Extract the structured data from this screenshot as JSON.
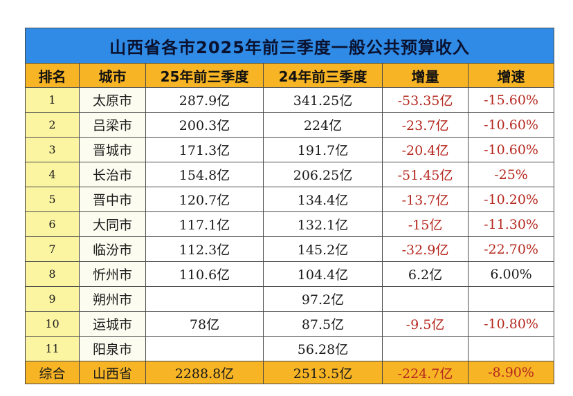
{
  "title": "山西省各市2025年前三季度一般公共预算收入",
  "headers": [
    "排名",
    "城市",
    "25年前三季度",
    "24年前三季度",
    "增量",
    "增速"
  ],
  "rows": [
    {
      "rank": "1",
      "city": "太原市",
      "y25": "287.9亿",
      "y24": "341.25亿",
      "delta": "-53.35亿",
      "growth": "-15.60%"
    },
    {
      "rank": "2",
      "city": "吕梁市",
      "y25": "200.3亿",
      "y24": "224亿",
      "delta": "-23.7亿",
      "growth": "-10.60%"
    },
    {
      "rank": "3",
      "city": "晋城市",
      "y25": "171.3亿",
      "y24": "191.7亿",
      "delta": "-20.4亿",
      "growth": "-10.60%"
    },
    {
      "rank": "4",
      "city": "长治市",
      "y25": "154.8亿",
      "y24": "206.25亿",
      "delta": "-51.45亿",
      "growth": "-25%"
    },
    {
      "rank": "5",
      "city": "晋中市",
      "y25": "120.7亿",
      "y24": "134.4亿",
      "delta": "-13.7亿",
      "growth": "-10.20%"
    },
    {
      "rank": "6",
      "city": "大同市",
      "y25": "117.1亿",
      "y24": "132.1亿",
      "delta": "-15亿",
      "growth": "-11.30%"
    },
    {
      "rank": "7",
      "city": "临汾市",
      "y25": "112.3亿",
      "y24": "145.2亿",
      "delta": "-32.9亿",
      "growth": "-22.70%"
    },
    {
      "rank": "8",
      "city": "忻州市",
      "y25": "110.6亿",
      "y24": "104.4亿",
      "delta": "6.2亿",
      "growth": "6.00%"
    },
    {
      "rank": "9",
      "city": "朔州市",
      "y25": "",
      "y24": "97.2亿",
      "delta": "",
      "growth": ""
    },
    {
      "rank": "10",
      "city": "运城市",
      "y25": "78亿",
      "y24": "87.5亿",
      "delta": "-9.5亿",
      "growth": "-10.80%"
    },
    {
      "rank": "11",
      "city": "阳泉市",
      "y25": "",
      "y24": "56.28亿",
      "delta": "",
      "growth": ""
    }
  ],
  "total": {
    "rank": "综合",
    "city": "山西省",
    "y25": "2288.8亿",
    "y24": "2513.5亿",
    "delta": "-224.7亿",
    "growth": "-8.90%"
  },
  "colors": {
    "title_bg": "#2f8be6",
    "header_bg": "#f7b425",
    "rank_bg": "#fbf5a2",
    "negative_text": "#b5271e"
  }
}
